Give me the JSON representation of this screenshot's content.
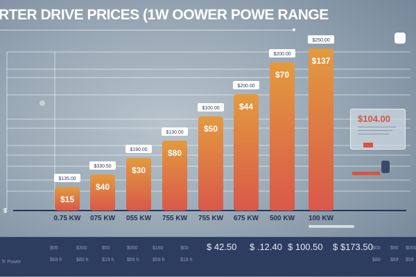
{
  "title": "RTER DRIVE PRICES (1W OOWER POWE RANGE",
  "colors": {
    "bar_top": "#e39a3e",
    "bar_bottom": "#d9584a",
    "band": "#2d3d60",
    "accent": "#d2553f"
  },
  "chart_data": {
    "type": "bar",
    "title": "RTER DRIVE PRICES (1W OOWER POWE RANGE",
    "categories": [
      "0.75 KW",
      "075 KW",
      "055 KW",
      "755 KW",
      "755 KW",
      "675 KW",
      "500 KW",
      "100 KW"
    ],
    "values": [
      15,
      40,
      30,
      80,
      50,
      44,
      70,
      137
    ],
    "bar_labels": [
      "$15",
      "$40",
      "$30",
      "$80",
      "$50",
      "$44",
      "$70",
      "$137"
    ],
    "price_tags": [
      "$135.00",
      "$330.50",
      "$190.00",
      "$130.00",
      "$100.00",
      "$200.00",
      "$200.00",
      "$250.00"
    ],
    "y_axis_label": "$",
    "grid": true
  },
  "callout": {
    "price": "$104.00"
  },
  "table": {
    "row_label": "Tr Power",
    "top_small": [
      "$05",
      "$300",
      "$50",
      "$000",
      "$160",
      "$00"
    ],
    "bottom_small": [
      "$69 h",
      "$80 h",
      "$19 h",
      "$69 h",
      "$59 h",
      "$19 h"
    ],
    "big_values": [
      "$ 42.50",
      "$ .12.40",
      "$ 100.50",
      "$ $173.50"
    ],
    "right_top": [
      "$00",
      "$90",
      "$000"
    ],
    "right_bottom": [
      "$80",
      "$69",
      "$59"
    ]
  }
}
